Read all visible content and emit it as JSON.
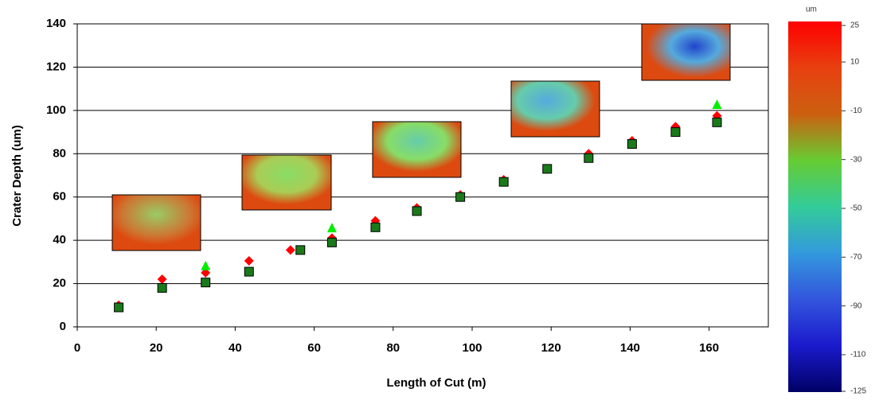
{
  "chart_data": {
    "type": "scatter",
    "xlabel": "Length of Cut (m)",
    "ylabel": "Crater Depth (um)",
    "xlim": [
      0,
      175
    ],
    "xticks": [
      0,
      20,
      40,
      60,
      80,
      100,
      120,
      140,
      160
    ],
    "ylim": [
      0,
      140
    ],
    "yticks": [
      0,
      20,
      40,
      60,
      80,
      100,
      120,
      140
    ],
    "grid": true,
    "series": [
      {
        "color": "#ff0000",
        "marker": "diamond",
        "x": [
          10.5,
          21.5,
          32.5,
          43.5,
          54,
          64.5,
          75.5,
          86,
          97,
          108,
          119,
          129.5,
          140.5,
          151.5,
          162
        ],
        "values": [
          10,
          22,
          25,
          30.5,
          35.5,
          41,
          49,
          55,
          61,
          68,
          73,
          80,
          86,
          92.5,
          97.5
        ]
      },
      {
        "color": "#00ee00",
        "marker": "triangle",
        "x": [
          32.5,
          64.5,
          97,
          129.5,
          162
        ],
        "values": [
          28,
          45.5,
          60,
          78,
          102.5
        ]
      },
      {
        "color": "#1a7a1a",
        "marker": "square",
        "x": [
          10.5,
          21.5,
          32.5,
          43.5,
          56.5,
          64.5,
          75.5,
          86,
          97,
          108,
          119,
          129.5,
          140.5,
          151.5,
          162
        ],
        "values": [
          9,
          18,
          20.5,
          25.5,
          35.5,
          39,
          46,
          53.5,
          60,
          67,
          73,
          78,
          84.5,
          90,
          94.5
        ]
      }
    ],
    "colorbar": {
      "title": "um",
      "range": [
        25,
        -125
      ],
      "ticks": [
        25,
        10,
        -10,
        -30,
        -50,
        -70,
        -90,
        -110,
        -125
      ],
      "colors": [
        "#ff0000",
        "#e84010",
        "#cc6010",
        "#66cc33",
        "#33cc99",
        "#3399dd",
        "#3355dd",
        "#1a1acc",
        "#000066"
      ]
    }
  }
}
